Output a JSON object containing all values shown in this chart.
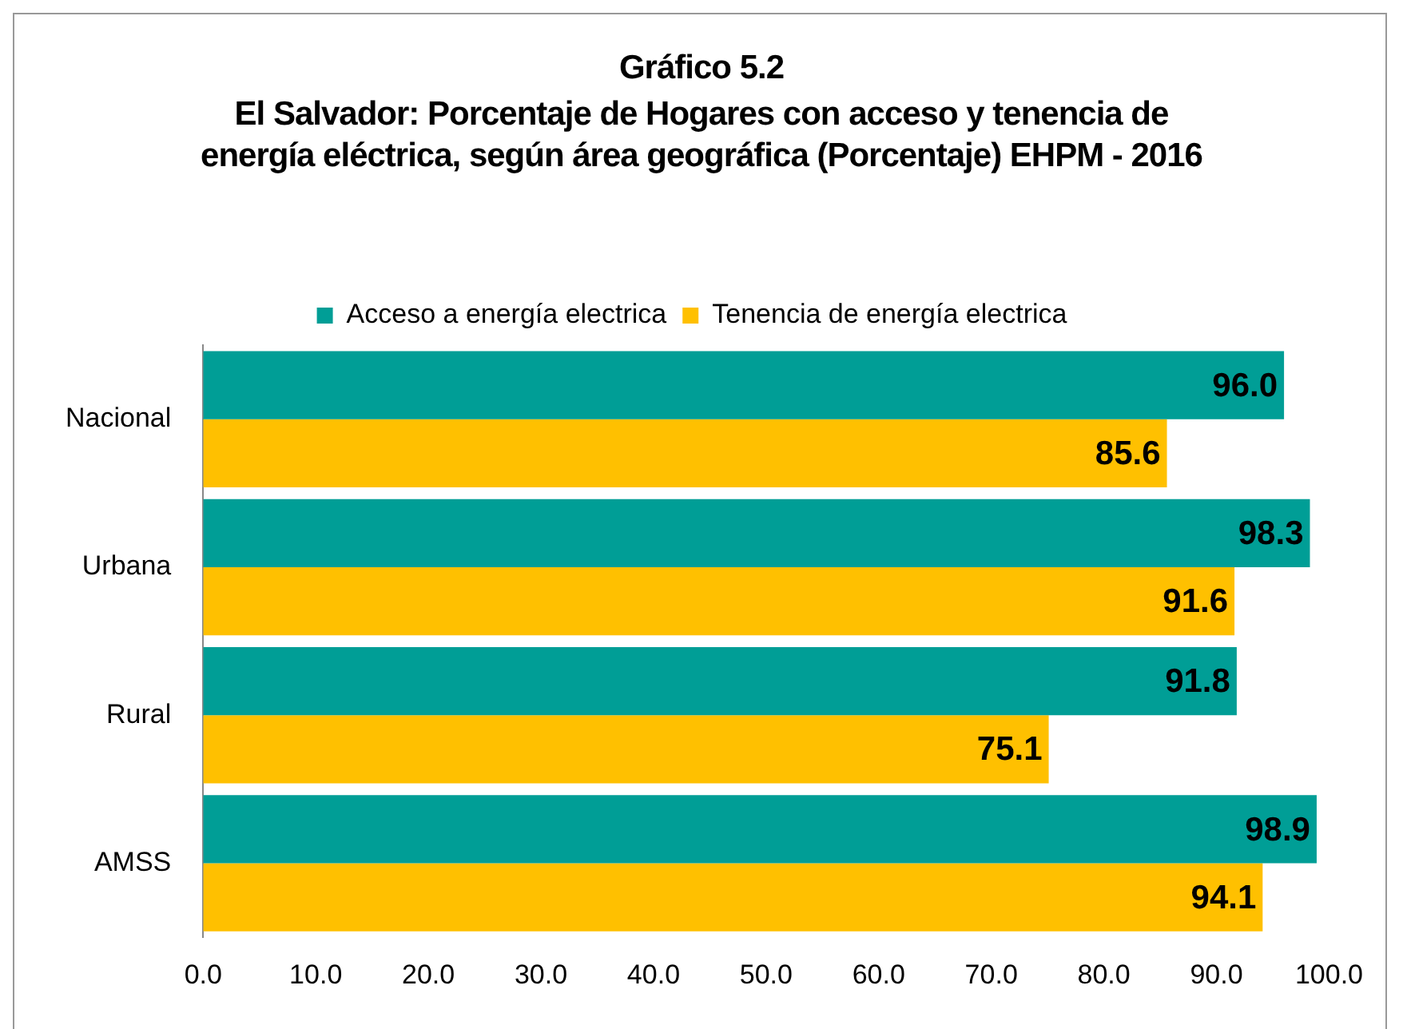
{
  "chart_data": {
    "type": "bar",
    "orientation": "horizontal",
    "title": "Gráfico 5.2",
    "subtitle": "El Salvador: Porcentaje de Hogares con acceso y tenencia de energía eléctrica, según área geográfica (Porcentaje) EHPM - 2016",
    "categories": [
      "Nacional",
      "Urbana",
      "Rural",
      "AMSS"
    ],
    "series": [
      {
        "name": "Acceso a energía electrica",
        "color": "#009e96",
        "values": [
          96.0,
          98.3,
          91.8,
          98.9
        ],
        "value_labels": [
          "96.0",
          "98.3",
          "91.8",
          "98.9"
        ]
      },
      {
        "name": "Tenencia de energía electrica",
        "color": "#ffc000",
        "values": [
          85.6,
          91.6,
          75.1,
          94.1
        ],
        "value_labels": [
          "85.6",
          "91.6",
          "75.1",
          "94.1"
        ]
      }
    ],
    "xlim": [
      0,
      100
    ],
    "xticks": [
      {
        "value": 0,
        "label": "0.0"
      },
      {
        "value": 10,
        "label": "10.0"
      },
      {
        "value": 20,
        "label": "20.0"
      },
      {
        "value": 30,
        "label": "30.0"
      },
      {
        "value": 40,
        "label": "40.0"
      },
      {
        "value": 50,
        "label": "50.0"
      },
      {
        "value": 60,
        "label": "60.0"
      },
      {
        "value": 70,
        "label": "70.0"
      },
      {
        "value": 80,
        "label": "80.0"
      },
      {
        "value": 90,
        "label": "90.0"
      },
      {
        "value": 100,
        "label": "100.0"
      }
    ],
    "grid": false,
    "legend": "top"
  }
}
